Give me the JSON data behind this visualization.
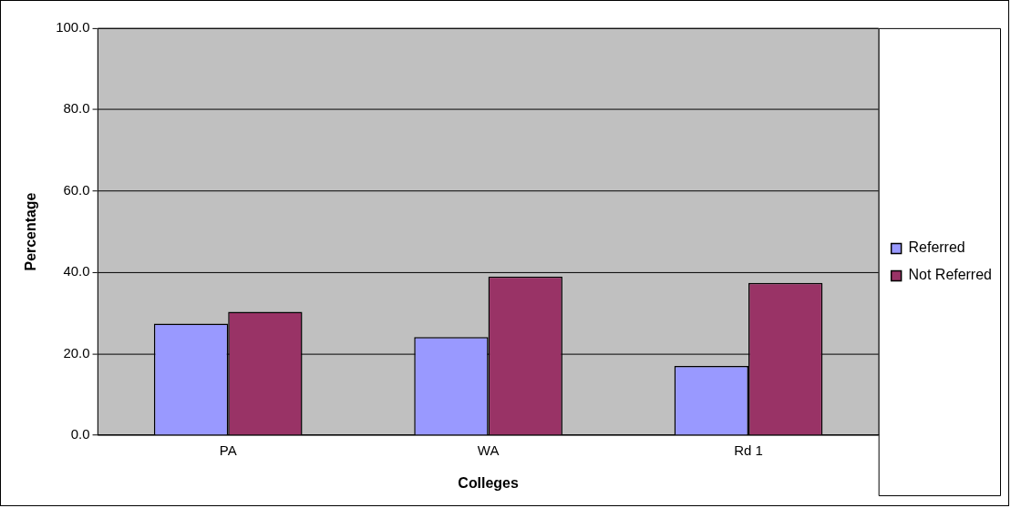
{
  "chart_data": {
    "type": "bar",
    "xlabel": "Colleges",
    "ylabel": "Percentage",
    "categories": [
      "PA",
      "WA",
      "Rd 1"
    ],
    "series": [
      {
        "name": "Referred",
        "color": "#9999ff",
        "values": [
          27.4,
          24.1,
          17.0
        ]
      },
      {
        "name": "Not Referred",
        "color": "#993366",
        "values": [
          30.3,
          39.0,
          37.4
        ]
      }
    ],
    "ylim": [
      0,
      100
    ],
    "yticks": [
      {
        "value": 0,
        "label": "0.0"
      },
      {
        "value": 20,
        "label": "20.0"
      },
      {
        "value": 40,
        "label": "40.0"
      },
      {
        "value": 60,
        "label": "60.0"
      },
      {
        "value": 80,
        "label": "80.0"
      },
      {
        "value": 100,
        "label": "100.0"
      }
    ],
    "grid": "y",
    "legend": "right"
  }
}
